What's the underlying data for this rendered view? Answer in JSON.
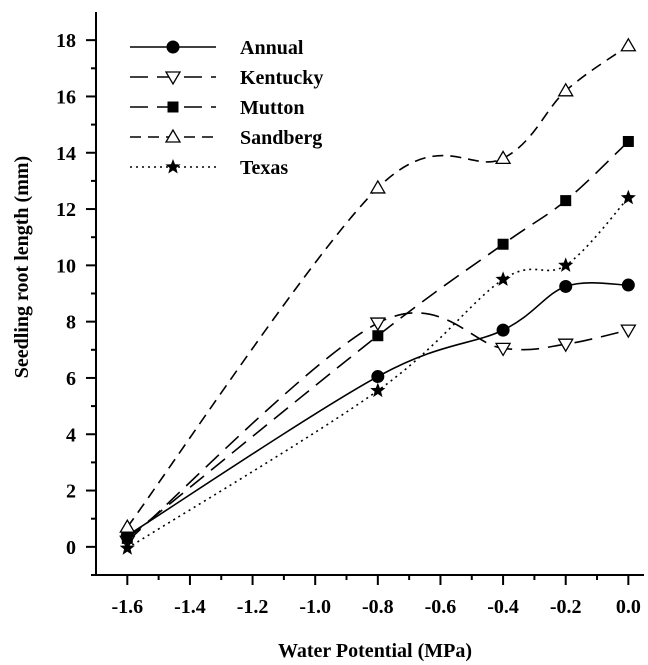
{
  "chart_data": {
    "type": "line",
    "xlabel": "Water Potential (MPa)",
    "ylabel": "Seedling root length (mm)",
    "xlim": [
      -1.7,
      0.05
    ],
    "ylim": [
      -1,
      19
    ],
    "x_ticks": [
      -1.6,
      -1.4,
      -1.2,
      -1.0,
      -0.8,
      -0.6,
      -0.4,
      -0.2,
      0.0
    ],
    "x_tick_labels": [
      "-1.6",
      "-1.4",
      "-1.2",
      "-1.0",
      "-0.8",
      "-0.6",
      "-0.4",
      "-0.2",
      "0.0"
    ],
    "y_ticks": [
      0,
      2,
      4,
      6,
      8,
      10,
      12,
      14,
      16,
      18
    ],
    "y_tick_labels": [
      "0",
      "2",
      "4",
      "6",
      "8",
      "10",
      "12",
      "14",
      "16",
      "18"
    ],
    "y_minor_ticks": [
      -1,
      1,
      3,
      5,
      7,
      9,
      11,
      13,
      15,
      17
    ],
    "grid": false,
    "legend_position": "top-left",
    "series": [
      {
        "name": "Annual",
        "marker": "circle-filled",
        "dash": "solid",
        "x": [
          -1.6,
          -0.8,
          -0.4,
          -0.2,
          0.0
        ],
        "y": [
          0.4,
          6.05,
          7.7,
          9.25,
          9.3
        ]
      },
      {
        "name": "Kentucky",
        "marker": "triangle-down-open",
        "dash": "long-dash",
        "x": [
          -1.6,
          -0.8,
          -0.4,
          -0.2,
          0.0
        ],
        "y": [
          0.2,
          7.95,
          7.05,
          7.2,
          7.7
        ]
      },
      {
        "name": "Mutton",
        "marker": "square-filled",
        "dash": "long-dash",
        "x": [
          -1.6,
          -0.8,
          -0.4,
          -0.2,
          0.0
        ],
        "y": [
          0.3,
          7.5,
          10.75,
          12.3,
          14.4
        ]
      },
      {
        "name": "Sandberg",
        "marker": "triangle-up-open",
        "dash": "dash",
        "x": [
          -1.6,
          -0.8,
          -0.4,
          -0.2,
          0.0
        ],
        "y": [
          0.7,
          12.75,
          13.8,
          16.2,
          17.8
        ]
      },
      {
        "name": "Texas",
        "marker": "star-filled",
        "dash": "dot",
        "x": [
          -1.6,
          -0.8,
          -0.4,
          -0.2,
          0.0
        ],
        "y": [
          -0.05,
          5.55,
          9.5,
          10.0,
          12.4
        ]
      }
    ]
  }
}
